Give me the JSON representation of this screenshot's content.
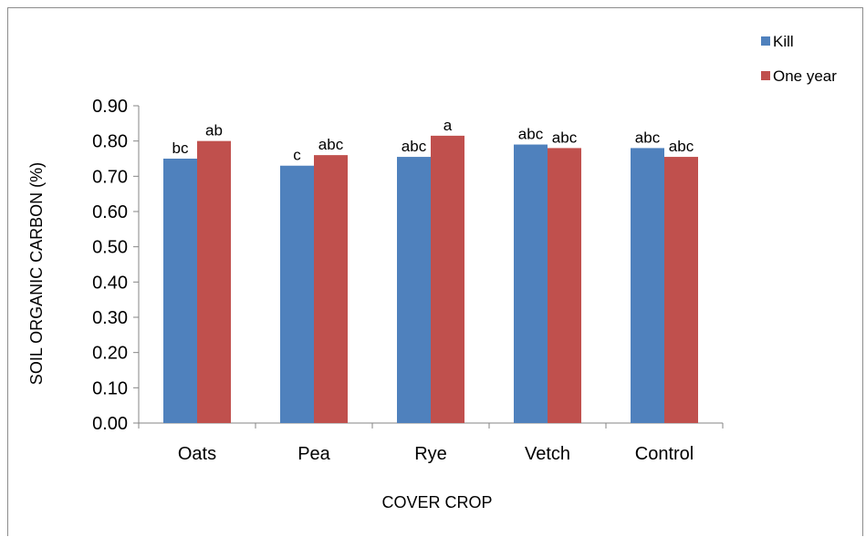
{
  "chart_data": {
    "type": "bar",
    "title": "",
    "xlabel": "COVER CROP",
    "ylabel": "SOIL ORGANIC CARBON (%)",
    "ylim": [
      0,
      0.9
    ],
    "yticks": [
      "0.00",
      "0.10",
      "0.20",
      "0.30",
      "0.40",
      "0.50",
      "0.60",
      "0.70",
      "0.80",
      "0.90"
    ],
    "categories": [
      "Oats",
      "Pea",
      "Rye",
      "Vetch",
      "Control"
    ],
    "series": [
      {
        "name": "Kill",
        "color": "#4f81bd",
        "values": [
          0.75,
          0.73,
          0.755,
          0.79,
          0.78
        ],
        "labels": [
          "bc",
          "c",
          "abc",
          "abc",
          "abc"
        ]
      },
      {
        "name": "One year",
        "color": "#c0504d",
        "values": [
          0.8,
          0.76,
          0.815,
          0.78,
          0.755
        ],
        "labels": [
          "ab",
          "abc",
          "a",
          "abc",
          "abc"
        ]
      }
    ],
    "grid": false,
    "legend_position": "top-right"
  }
}
